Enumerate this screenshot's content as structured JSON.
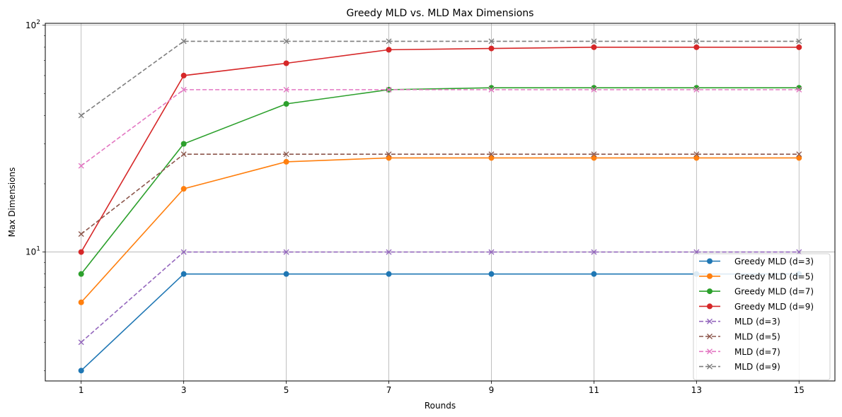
{
  "chart_data": {
    "type": "line",
    "title": "Greedy MLD vs. MLD Max Dimensions",
    "xlabel": "Rounds",
    "ylabel": "Max Dimensions",
    "x": [
      1,
      3,
      5,
      7,
      9,
      11,
      13,
      15
    ],
    "x_ticks": [
      "1",
      "3",
      "5",
      "7",
      "9",
      "11",
      "13",
      "15"
    ],
    "y_scale": "log",
    "ylim": [
      2.7,
      102
    ],
    "y_ticks": [
      {
        "value": 10,
        "base": "10",
        "exp": "1"
      },
      {
        "value": 100,
        "base": "10",
        "exp": "2"
      }
    ],
    "grid": true,
    "legend_position": "lower-right",
    "series": [
      {
        "name": "Greedy MLD (d=3)",
        "values": [
          3,
          8,
          8,
          8,
          8,
          8,
          8,
          8
        ],
        "color": "#1f77b4",
        "linestyle": "solid",
        "marker": "circle"
      },
      {
        "name": "Greedy MLD (d=5)",
        "values": [
          6,
          19,
          25,
          26,
          26,
          26,
          26,
          26
        ],
        "color": "#ff7f0e",
        "linestyle": "solid",
        "marker": "circle"
      },
      {
        "name": "Greedy MLD (d=7)",
        "values": [
          8,
          30,
          45,
          52,
          53,
          53,
          53,
          53
        ],
        "color": "#2ca02c",
        "linestyle": "solid",
        "marker": "circle"
      },
      {
        "name": "Greedy MLD (d=9)",
        "values": [
          10,
          60,
          68,
          78,
          79,
          80,
          80,
          80
        ],
        "color": "#d62728",
        "linestyle": "solid",
        "marker": "circle"
      },
      {
        "name": "MLD (d=3)",
        "values": [
          4,
          10,
          10,
          10,
          10,
          10,
          10,
          10
        ],
        "color": "#9467bd",
        "linestyle": "dashed",
        "marker": "x"
      },
      {
        "name": "MLD (d=5)",
        "values": [
          12,
          27,
          27,
          27,
          27,
          27,
          27,
          27
        ],
        "color": "#8c564b",
        "linestyle": "dashed",
        "marker": "x"
      },
      {
        "name": "MLD (d=7)",
        "values": [
          24,
          52,
          52,
          52,
          52,
          52,
          52,
          52
        ],
        "color": "#e377c2",
        "linestyle": "dashed",
        "marker": "x"
      },
      {
        "name": "MLD (d=9)",
        "values": [
          40,
          85,
          85,
          85,
          85,
          85,
          85,
          85
        ],
        "color": "#7f7f7f",
        "linestyle": "dashed",
        "marker": "x"
      }
    ]
  }
}
